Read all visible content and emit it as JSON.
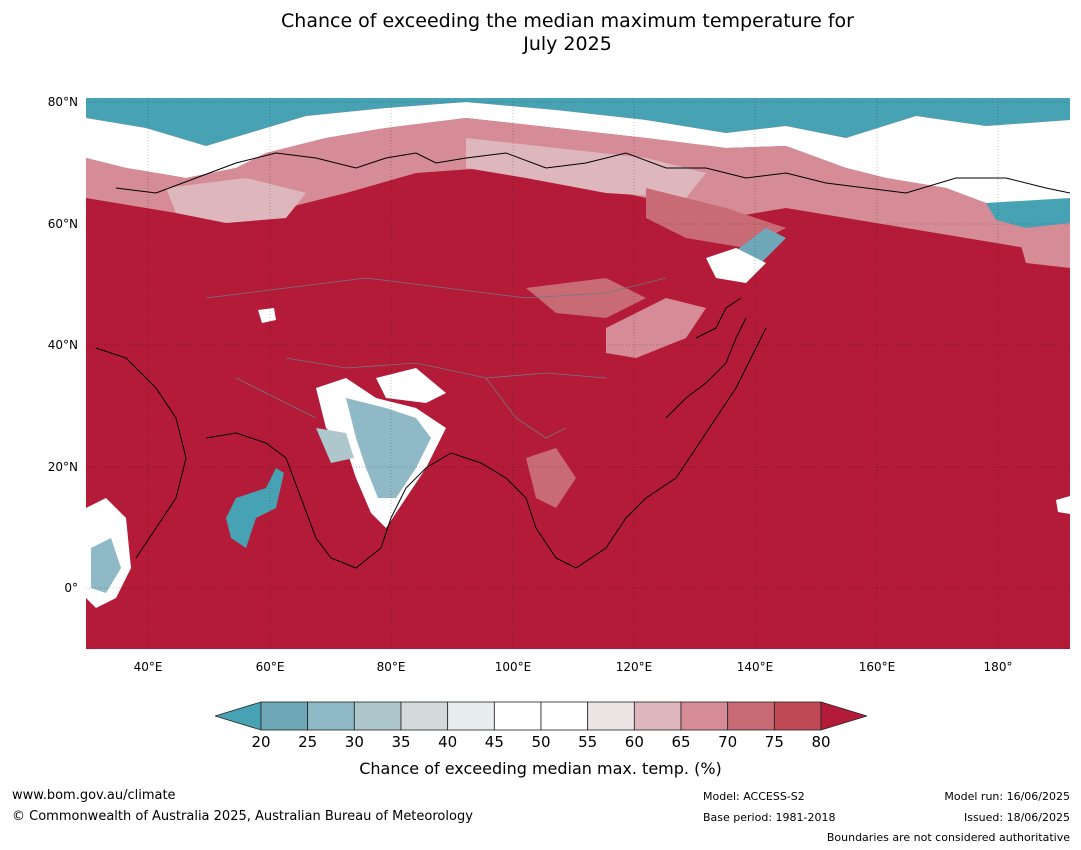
{
  "title": {
    "line1": "Chance of exceeding the median maximum temperature for",
    "line2": "July 2025"
  },
  "map": {
    "lat_labels": [
      "80°N",
      "60°N",
      "40°N",
      "20°N",
      "0°"
    ],
    "lon_labels": [
      "40°E",
      "60°E",
      "80°E",
      "100°E",
      "120°E",
      "140°E",
      "160°E",
      "180°"
    ]
  },
  "colorbar": {
    "ticks": [
      "20",
      "25",
      "30",
      "35",
      "40",
      "45",
      "50",
      "55",
      "60",
      "65",
      "70",
      "75",
      "80"
    ],
    "colors": [
      "#47a3b3",
      "#6ea8b8",
      "#8fb9c6",
      "#adc7cd",
      "#d2dadb",
      "#e8eef0",
      "#ffffff",
      "#ffffff",
      "#ebe5e6",
      "#deb7bd",
      "#d58c96",
      "#c96b74",
      "#bf4a55",
      "#b31b39"
    ],
    "label": "Chance of exceeding median max. temp. (%)"
  },
  "footer": {
    "website": "www.bom.gov.au/climate",
    "copyright": "© Commonwealth of Australia 2025, Australian Bureau of Meteorology",
    "model": "Model: ACCESS-S2",
    "base_period": "Base period: 1981-2018",
    "model_run": "Model run: 16/06/2025",
    "issued": "Issued: 18/06/2025",
    "disclaimer": "Boundaries are not considered authoritative"
  }
}
